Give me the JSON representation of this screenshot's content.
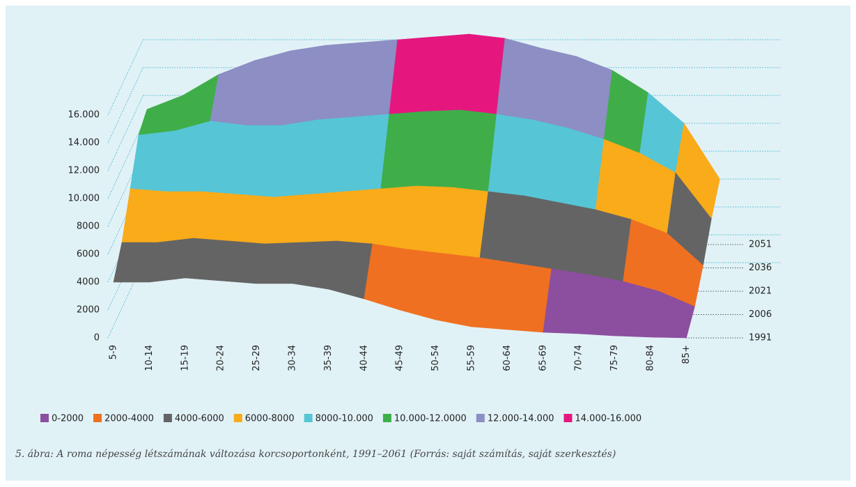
{
  "chart_data": {
    "type": "surface",
    "categories": [
      "5-9",
      "10-14",
      "15-19",
      "20-24",
      "25-29",
      "30-34",
      "35-39",
      "40-44",
      "45-49",
      "50-54",
      "55-59",
      "60-64",
      "65-69",
      "70-74",
      "75-79",
      "80-84",
      "85+"
    ],
    "depth": [
      "1991",
      "2006",
      "2021",
      "2036",
      "2051"
    ],
    "values": [
      [
        4000,
        4000,
        4300,
        4100,
        3900,
        3900,
        3500,
        2800,
        2000,
        1300,
        800,
        600,
        400,
        300,
        150,
        50,
        0
      ],
      [
        5500,
        5500,
        5800,
        5600,
        5400,
        5500,
        5600,
        5400,
        5000,
        4700,
        4400,
        4000,
        3600,
        3200,
        2700,
        2000,
        900
      ],
      [
        8000,
        7800,
        7800,
        7600,
        7400,
        7600,
        7800,
        8000,
        8200,
        8100,
        7800,
        7500,
        7000,
        6500,
        5800,
        4800,
        2500
      ],
      [
        10500,
        10800,
        11500,
        11200,
        11200,
        11600,
        11800,
        12000,
        12200,
        12300,
        12000,
        11600,
        11000,
        10200,
        9200,
        7800,
        4500
      ],
      [
        11000,
        12000,
        13500,
        14500,
        15200,
        15600,
        15800,
        16000,
        16200,
        16400,
        16100,
        15400,
        14800,
        13800,
        12200,
        10000,
        6000
      ]
    ],
    "bands": [
      {
        "name": "0-2000",
        "color": "#8c4f9f",
        "range": [
          0,
          2000
        ]
      },
      {
        "name": "2000-4000",
        "color": "#f07021",
        "range": [
          2000,
          4000
        ]
      },
      {
        "name": "4000-6000",
        "color": "#646464",
        "range": [
          4000,
          6000
        ]
      },
      {
        "name": "6000-8000",
        "color": "#f9ab1a",
        "range": [
          6000,
          8000
        ]
      },
      {
        "name": "8000-10.000",
        "color": "#56c5d5",
        "range": [
          8000,
          10000
        ]
      },
      {
        "name": "10.000-12.0000",
        "color": "#3fae49",
        "range": [
          10000,
          12000
        ]
      },
      {
        "name": "12.000-14.000",
        "color": "#8c8ec4",
        "range": [
          12000,
          14000
        ]
      },
      {
        "name": "14.000-16.000",
        "color": "#e5177e",
        "range": [
          14000,
          16000
        ]
      }
    ],
    "ylim": [
      0,
      16000
    ],
    "yticks": [
      0,
      2000,
      4000,
      6000,
      8000,
      {
        "value": 10000,
        "label": "10.000"
      },
      {
        "value": 12000,
        "label": "12.000"
      },
      {
        "value": 14000,
        "label": "14.000"
      },
      {
        "value": 16000,
        "label": "16.000"
      }
    ],
    "caption": "5. ábra: A roma népesség létszámának változása korcsoportonként, 1991–2061 (Forrás: saját számítás, saját szerkesztés)"
  }
}
